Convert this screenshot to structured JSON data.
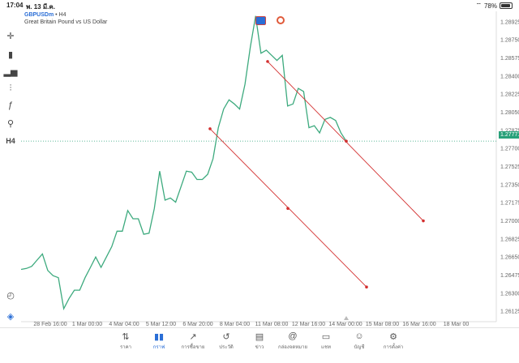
{
  "status": {
    "time": "17:04",
    "date": "พ. 13 มี.ค.",
    "battery": "78%",
    "battery_level": 0.78
  },
  "symbol": {
    "ticker": "GBPUSDm",
    "separator": " • ",
    "timeframe": "H4",
    "description": "Great Britain Pound vs US Dollar"
  },
  "tools": [
    {
      "name": "crosshair-icon",
      "glyph": "✛"
    },
    {
      "name": "candlestick-icon",
      "glyph": "▮"
    },
    {
      "name": "volume-bars-icon",
      "glyph": "▂▅"
    },
    {
      "name": "indicators-icon",
      "glyph": "⫶"
    },
    {
      "name": "function-icon",
      "glyph": "ƒ"
    },
    {
      "name": "objects-icon",
      "glyph": "⚲"
    },
    {
      "name": "timeframe-label",
      "glyph": "H4"
    }
  ],
  "current_price": "1.27771",
  "colors": {
    "line": "#3daa7e",
    "trend": "#d32f2f",
    "accent": "#2a6ed6",
    "badge": "#29a17a"
  },
  "chart_data": {
    "type": "line",
    "x_ticks": [
      "28 Feb 16:00",
      "1 Mar 00:00",
      "4 Mar 04:00",
      "5 Mar 12:00",
      "6 Mar 20:00",
      "8 Mar 04:00",
      "11 Mar 08:00",
      "12 Mar 16:00",
      "14 Mar 00:00",
      "15 Mar 08:00",
      "16 Mar 16:00",
      "18 Mar 00"
    ],
    "y_ticks": [
      "1.28925",
      "1.28750",
      "1.28575",
      "1.28400",
      "1.28225",
      "1.28050",
      "1.27875",
      "1.27700",
      "1.27525",
      "1.27350",
      "1.27175",
      "1.27000",
      "1.26825",
      "1.26650",
      "1.26475",
      "1.26300",
      "1.26125"
    ],
    "ylim": [
      1.26025,
      1.29025
    ],
    "series": [
      {
        "values": [
          1.2653,
          1.2654,
          1.2656,
          1.2662,
          1.2668,
          1.2652,
          1.2647,
          1.2645,
          1.2615,
          1.2625,
          1.2633,
          1.2633,
          1.2645,
          1.2655,
          1.2665,
          1.2655,
          1.2665,
          1.2675,
          1.269,
          1.269,
          1.271,
          1.2702,
          1.2702,
          1.2687,
          1.2688,
          1.2712,
          1.2748,
          1.272,
          1.2722,
          1.2718,
          1.2733,
          1.2748,
          1.2747,
          1.274,
          1.274,
          1.2745,
          1.276,
          1.279,
          1.2808,
          1.2817,
          1.2813,
          1.2808,
          1.2832,
          1.2868,
          1.2898,
          1.2862,
          1.2865,
          1.286,
          1.2855,
          1.286,
          1.2811,
          1.2813,
          1.2828,
          1.2825,
          1.279,
          1.2792,
          1.2785,
          1.2798,
          1.28,
          1.2797,
          1.2785,
          1.2777
        ]
      }
    ],
    "trendlines": [
      {
        "points": [
          [
            1.2789
          ],
          [
            1.2712
          ],
          [
            1.2636
          ]
        ]
      },
      {
        "points": [
          [
            1.2854
          ],
          [
            1.2777
          ],
          [
            1.27
          ]
        ]
      }
    ],
    "current_level": 1.27771,
    "grid": false
  },
  "side_buttons": [
    {
      "name": "chart-history-icon",
      "glyph": "◴"
    },
    {
      "name": "trade-logo-icon",
      "glyph": "◈"
    }
  ],
  "nav": [
    {
      "name": "nav-quotes",
      "icon": "⇅",
      "label": "ราคา",
      "active": false
    },
    {
      "name": "nav-chart",
      "icon": "▮▮",
      "label": "กราฟ",
      "active": true
    },
    {
      "name": "nav-trade",
      "icon": "↗",
      "label": "การซื้อขาย",
      "active": false
    },
    {
      "name": "nav-history",
      "icon": "↺",
      "label": "ประวัติ",
      "active": false
    },
    {
      "name": "nav-news",
      "icon": "▤",
      "label": "ข่าว",
      "active": false
    },
    {
      "name": "nav-mailbox",
      "icon": "@",
      "label": "กล่องจดหมาย",
      "active": false
    },
    {
      "name": "nav-chat",
      "icon": "▭",
      "label": "แชท",
      "active": false
    },
    {
      "name": "nav-account",
      "icon": "☺",
      "label": "บัญชี",
      "active": false
    },
    {
      "name": "nav-settings",
      "icon": "⚙",
      "label": "การตั้งค่า",
      "active": false
    }
  ]
}
